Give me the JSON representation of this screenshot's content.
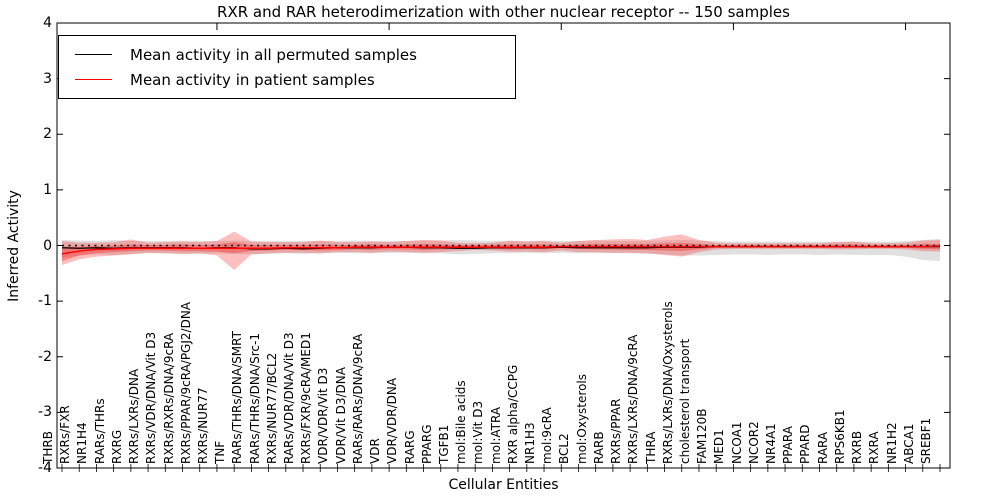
{
  "title": "RXR and RAR heterodimerization with other nuclear receptor -- 150 samples",
  "legend": {
    "items": [
      {
        "label": "Mean activity in all permuted samples",
        "color": "#000000"
      },
      {
        "label": "Mean activity in patient samples",
        "color": "#ff0000"
      }
    ]
  },
  "axes": {
    "ylabel": "Inferred Activity",
    "xlabel": "Cellular Entities",
    "ylim": [
      -4,
      4
    ],
    "yticks": [
      4,
      3,
      2,
      1,
      0,
      -1,
      -2,
      -3,
      -4
    ],
    "ytick_labels": [
      "4",
      "3",
      "2",
      "1",
      "0",
      "-1",
      "-2",
      "-3",
      "-4"
    ]
  },
  "colors": {
    "permuted_line": "#000000",
    "patient_line": "#ff0000",
    "permuted_band": "#999999",
    "patient_band": "#ff0000",
    "frame": "#000000",
    "background": "#ffffff"
  },
  "chart_data": {
    "type": "line",
    "title": "RXR and RAR heterodimerization with other nuclear receptor -- 150 samples",
    "xlabel": "Cellular Entities",
    "ylabel": "Inferred Activity",
    "ylim": [
      -4,
      4
    ],
    "grid": false,
    "legend_position": "upper left",
    "reference_line": {
      "y": 0,
      "style": "dotted",
      "color": "#000000"
    },
    "categories": [
      "THRB",
      "RXRs/FXR",
      "NR1H4",
      "RARs/THRs",
      "RXRG",
      "RXRs/LXRs/DNA",
      "RXRs/VDR/DNA/Vit D3",
      "RXRs/RXRs/DNA/9cRA",
      "RXRs/PPAR/9cRA/PGJ2/DNA",
      "RXRs/NUR77",
      "TNF",
      "RARs/THRs/DNA/SMRT",
      "RARs/THRs/DNA/Src-1",
      "RXRs/NUR77/BCL2",
      "RARs/VDR/DNA/Vit D3",
      "RXRs/FXR/9cRA/MED1",
      "VDR/VDR/Vit D3",
      "VDR/Vit D3/DNA",
      "RARs/RARs/DNA/9cRA",
      "VDR",
      "VDR/VDR/DNA",
      "RARG",
      "PPARG",
      "TGFB1",
      "mol:Bile acids",
      "mol:Vit D3",
      "mol:ATRA",
      "RXR alpha/CCPG",
      "NR1H3",
      "mol:9cRA",
      "BCL2",
      "mol:Oxysterols",
      "RARB",
      "RXRs/PPAR",
      "RXRs/LXRs/DNA/9cRA",
      "THRA",
      "RXRs/LXRs/DNA/Oxysterols",
      "cholesterol transport",
      "FAM120B",
      "MED1",
      "NCOA1",
      "NCOR2",
      "NR4A1",
      "PPARA",
      "PPARD",
      "RARA",
      "RPS6KB1",
      "RXRB",
      "RXRA",
      "NR1H2",
      "ABCA1",
      "SREBF1"
    ],
    "series": [
      {
        "name": "Mean activity in all permuted samples",
        "color": "#000000",
        "values": [
          -0.04,
          -0.05,
          -0.04,
          -0.05,
          -0.04,
          -0.04,
          -0.04,
          -0.04,
          -0.05,
          -0.04,
          -0.04,
          -0.06,
          -0.06,
          -0.05,
          -0.06,
          -0.05,
          -0.04,
          -0.04,
          -0.04,
          -0.03,
          -0.03,
          -0.04,
          -0.04,
          -0.05,
          -0.05,
          -0.04,
          -0.04,
          -0.04,
          -0.04,
          -0.03,
          -0.04,
          -0.04,
          -0.04,
          -0.04,
          -0.04,
          -0.03,
          -0.03,
          -0.03,
          -0.02,
          -0.02,
          -0.02,
          -0.02,
          -0.02,
          -0.02,
          -0.02,
          -0.02,
          -0.02,
          -0.02,
          -0.02,
          -0.02,
          -0.02,
          -0.02
        ],
        "band_upper": [
          0.1,
          0.09,
          0.08,
          0.1,
          0.08,
          0.08,
          0.08,
          0.09,
          0.08,
          0.08,
          0.09,
          0.08,
          0.08,
          0.08,
          0.08,
          0.08,
          0.08,
          0.09,
          0.08,
          0.08,
          0.08,
          0.09,
          0.09,
          0.1,
          0.09,
          0.08,
          0.09,
          0.08,
          0.09,
          0.08,
          0.08,
          0.09,
          0.08,
          0.08,
          0.09,
          0.09,
          0.1,
          0.09,
          0.08,
          0.07,
          0.07,
          0.07,
          0.07,
          0.07,
          0.07,
          0.07,
          0.07,
          0.07,
          0.07,
          0.08,
          0.1,
          0.12
        ],
        "band_lower": [
          -0.22,
          -0.18,
          -0.16,
          -0.17,
          -0.15,
          -0.14,
          -0.14,
          -0.15,
          -0.15,
          -0.14,
          -0.15,
          -0.16,
          -0.15,
          -0.14,
          -0.15,
          -0.14,
          -0.13,
          -0.14,
          -0.14,
          -0.13,
          -0.13,
          -0.14,
          -0.14,
          -0.16,
          -0.15,
          -0.14,
          -0.14,
          -0.13,
          -0.14,
          -0.13,
          -0.14,
          -0.14,
          -0.14,
          -0.14,
          -0.15,
          -0.16,
          -0.18,
          -0.18,
          -0.17,
          -0.16,
          -0.16,
          -0.17,
          -0.16,
          -0.16,
          -0.17,
          -0.16,
          -0.17,
          -0.17,
          -0.17,
          -0.2,
          -0.26,
          -0.28
        ]
      },
      {
        "name": "Mean activity in patient samples",
        "color": "#ff0000",
        "values": [
          -0.15,
          -0.1,
          -0.07,
          -0.06,
          -0.05,
          -0.05,
          -0.05,
          -0.05,
          -0.05,
          -0.05,
          -0.05,
          -0.05,
          -0.05,
          -0.04,
          -0.04,
          -0.04,
          -0.04,
          -0.03,
          -0.03,
          -0.03,
          -0.03,
          -0.03,
          -0.03,
          -0.03,
          -0.03,
          -0.03,
          -0.03,
          -0.03,
          -0.03,
          -0.02,
          -0.02,
          -0.02,
          -0.02,
          -0.02,
          -0.02,
          -0.02,
          -0.02,
          -0.02,
          -0.02,
          -0.02,
          -0.02,
          -0.02,
          -0.02,
          -0.02,
          -0.02,
          -0.02,
          -0.02,
          -0.02,
          -0.02,
          -0.02,
          -0.02,
          -0.01
        ],
        "band_outer_upper": [
          0.08,
          0.05,
          0.05,
          0.06,
          0.11,
          0.05,
          0.06,
          0.07,
          0.06,
          0.08,
          0.25,
          0.07,
          0.06,
          0.06,
          0.06,
          0.09,
          0.06,
          0.06,
          0.07,
          0.06,
          0.08,
          0.1,
          0.09,
          0.05,
          0.04,
          0.05,
          0.08,
          0.07,
          0.08,
          0.05,
          0.08,
          0.1,
          0.11,
          0.12,
          0.1,
          0.16,
          0.2,
          0.1,
          0.05,
          0.04,
          0.04,
          0.04,
          0.04,
          0.04,
          0.04,
          0.06,
          0.07,
          0.04,
          0.04,
          0.05,
          0.09,
          0.1
        ],
        "band_outer_lower": [
          -0.35,
          -0.25,
          -0.2,
          -0.18,
          -0.16,
          -0.13,
          -0.14,
          -0.15,
          -0.14,
          -0.18,
          -0.44,
          -0.16,
          -0.14,
          -0.13,
          -0.13,
          -0.14,
          -0.12,
          -0.12,
          -0.13,
          -0.11,
          -0.12,
          -0.13,
          -0.12,
          -0.1,
          -0.08,
          -0.09,
          -0.11,
          -0.11,
          -0.12,
          -0.09,
          -0.12,
          -0.12,
          -0.13,
          -0.13,
          -0.14,
          -0.17,
          -0.2,
          -0.12,
          -0.07,
          -0.06,
          -0.06,
          -0.06,
          -0.06,
          -0.06,
          -0.06,
          -0.07,
          -0.07,
          -0.06,
          -0.06,
          -0.07,
          -0.1,
          -0.11
        ],
        "band_inner_upper": [
          -0.02,
          -0.02,
          -0.01,
          0.0,
          0.02,
          0.01,
          0.01,
          0.02,
          0.01,
          0.02,
          0.06,
          0.01,
          0.01,
          0.01,
          0.01,
          0.02,
          0.01,
          0.01,
          0.02,
          0.01,
          0.02,
          0.03,
          0.02,
          0.01,
          0.01,
          0.01,
          0.02,
          0.02,
          0.02,
          0.01,
          0.02,
          0.03,
          0.03,
          0.03,
          0.03,
          0.04,
          0.05,
          0.03,
          0.01,
          0.01,
          0.01,
          0.01,
          0.01,
          0.01,
          0.01,
          0.02,
          0.02,
          0.01,
          0.01,
          0.01,
          0.03,
          0.03
        ],
        "band_inner_lower": [
          -0.28,
          -0.18,
          -0.14,
          -0.12,
          -0.1,
          -0.09,
          -0.09,
          -0.1,
          -0.1,
          -0.11,
          -0.14,
          -0.1,
          -0.09,
          -0.08,
          -0.08,
          -0.09,
          -0.08,
          -0.07,
          -0.08,
          -0.07,
          -0.07,
          -0.08,
          -0.07,
          -0.06,
          -0.05,
          -0.06,
          -0.07,
          -0.06,
          -0.07,
          -0.05,
          -0.06,
          -0.07,
          -0.07,
          -0.08,
          -0.08,
          -0.09,
          -0.1,
          -0.07,
          -0.04,
          -0.04,
          -0.04,
          -0.04,
          -0.04,
          -0.04,
          -0.04,
          -0.04,
          -0.04,
          -0.04,
          -0.04,
          -0.04,
          -0.06,
          -0.07
        ]
      }
    ]
  }
}
